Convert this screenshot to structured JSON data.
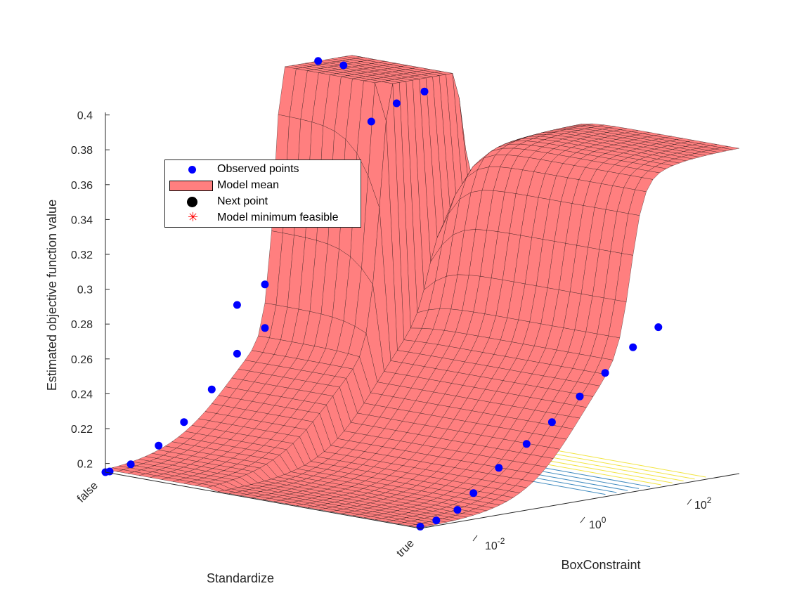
{
  "chart_data": {
    "type": "surface",
    "zlabel": "Estimated objective function value",
    "xlabel": "BoxConstraint",
    "ylabel": "Standardize",
    "x_scale": "log",
    "x_ticks": [
      "10^-2",
      "10^0",
      "10^2"
    ],
    "y_categories": [
      "false",
      "true"
    ],
    "z_ticks": [
      "0.2",
      "0.22",
      "0.24",
      "0.26",
      "0.28",
      "0.3",
      "0.32",
      "0.34",
      "0.36",
      "0.38",
      "0.4"
    ],
    "zlim": [
      0.195,
      0.42
    ],
    "legend": [
      {
        "label": "Observed points",
        "marker": "circle",
        "color": "#0000ff"
      },
      {
        "label": "Model mean",
        "marker": "patch",
        "color": "#ff7f7f"
      },
      {
        "label": "Next point",
        "marker": "circle",
        "color": "#000000"
      },
      {
        "label": "Model minimum feasible",
        "marker": "asterisk",
        "color": "#ff0000"
      }
    ],
    "series": [
      {
        "name": "Observed points",
        "x": [
          0.001,
          0.0012,
          0.003,
          0.01,
          0.03,
          0.1,
          0.3,
          1,
          0.3,
          1,
          10,
          30,
          100,
          300,
          1000,
          0.001,
          0.002,
          0.005,
          0.01,
          0.03,
          0.1,
          0.3,
          1,
          3,
          10,
          30
        ],
        "y": [
          "false",
          "false",
          "false",
          "false",
          "false",
          "false",
          "false",
          "false",
          "false",
          "false",
          "false",
          "false",
          "false",
          "false",
          "false",
          "true",
          "true",
          "true",
          "true",
          "true",
          "true",
          "true",
          "true",
          "true",
          "true",
          "true"
        ],
        "z": [
          0.195,
          0.195,
          0.197,
          0.205,
          0.216,
          0.232,
          0.25,
          0.262,
          0.278,
          0.287,
          0.41,
          0.405,
          0.37,
          0.378,
          0.382,
          0.196,
          0.198,
          0.202,
          0.21,
          0.222,
          0.233,
          0.243,
          0.255,
          0.266,
          0.278,
          0.287
        ]
      }
    ],
    "colors": {
      "surface": "#ff7f7f",
      "surface_edge": "#000000",
      "observed": "#0000ff",
      "contour_low": "#1f77b4",
      "contour_high": "#f0e020"
    }
  }
}
